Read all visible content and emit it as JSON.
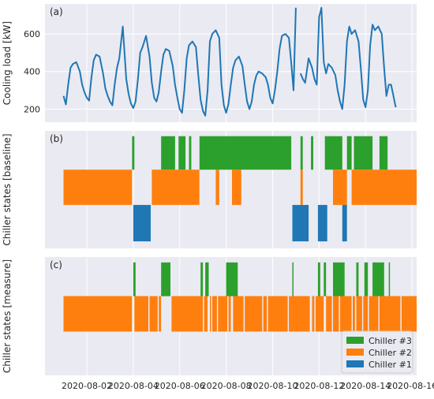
{
  "colors": {
    "panel_bg": "#eaeaf2",
    "grid": "#ffffff",
    "load_line": "#1f77b4",
    "chiller3": "#2ca02c",
    "chiller2": "#ff7f0e",
    "chiller1": "#1f77b4",
    "text": "#262626"
  },
  "chart_data": [
    {
      "panel": "(a)",
      "type": "line",
      "ylabel": "Cooling load [kW]",
      "yticks": [
        200,
        400,
        600
      ],
      "ylim": [
        130,
        760
      ],
      "x_days": [
        0.0,
        0.1,
        0.2,
        0.3,
        0.4,
        0.55,
        0.7,
        0.8,
        0.9,
        1.0,
        1.1,
        1.2,
        1.3,
        1.4,
        1.55,
        1.7,
        1.8,
        1.9,
        2.0,
        2.1,
        2.2,
        2.3,
        2.4,
        2.55,
        2.7,
        2.8,
        2.9,
        3.0,
        3.1,
        3.2,
        3.3,
        3.4,
        3.55,
        3.7,
        3.8,
        3.9,
        4.0,
        4.1,
        4.2,
        4.3,
        4.4,
        4.55,
        4.7,
        4.8,
        4.9,
        5.0,
        5.1,
        5.2,
        5.3,
        5.4,
        5.55,
        5.7,
        5.8,
        5.9,
        6.0,
        6.1,
        6.2,
        6.3,
        6.4,
        6.55,
        6.7,
        6.8,
        6.9,
        7.0,
        7.1,
        7.2,
        7.3,
        7.4,
        7.55,
        7.7,
        7.8,
        7.9,
        8.0,
        8.1,
        8.2,
        8.3,
        8.4,
        8.55,
        8.7,
        8.8,
        8.9,
        9.0,
        9.1,
        9.2,
        9.3,
        9.4,
        9.55,
        9.7,
        9.8,
        9.9,
        10.0,
        10.2,
        10.3,
        10.4,
        10.55,
        10.7,
        10.8,
        10.9,
        11.0,
        11.1,
        11.2,
        11.3,
        11.4,
        11.55,
        11.7,
        11.8,
        11.9,
        12.0,
        12.1,
        12.2,
        12.3,
        12.4,
        12.55,
        12.7,
        12.8,
        12.9,
        13.0,
        13.1,
        13.2,
        13.3,
        13.4,
        13.55,
        13.7,
        13.8,
        13.9,
        14.0,
        14.1,
        14.2,
        14.3
      ],
      "y_kw": [
        270,
        225,
        330,
        420,
        440,
        450,
        400,
        330,
        290,
        260,
        245,
        370,
        460,
        490,
        480,
        390,
        310,
        270,
        240,
        220,
        330,
        420,
        470,
        640,
        360,
        280,
        230,
        205,
        240,
        360,
        500,
        530,
        590,
        480,
        340,
        260,
        240,
        290,
        400,
        490,
        520,
        510,
        430,
        330,
        260,
        200,
        180,
        300,
        470,
        540,
        560,
        530,
        380,
        250,
        190,
        165,
        300,
        560,
        600,
        620,
        580,
        330,
        220,
        180,
        230,
        330,
        420,
        460,
        480,
        430,
        330,
        240,
        200,
        240,
        330,
        380,
        400,
        390,
        370,
        330,
        260,
        230,
        300,
        400,
        520,
        590,
        600,
        580,
        450,
        300,
        740,
        390,
        360,
        340,
        470,
        420,
        360,
        330,
        690,
        740,
        450,
        390,
        440,
        420,
        380,
        300,
        240,
        200,
        330,
        560,
        640,
        600,
        620,
        560,
        410,
        250,
        210,
        300,
        540,
        650,
        620,
        640,
        600,
        420,
        270,
        330,
        330,
        270,
        210
      ],
      "gaps_after_index": [
        90
      ]
    },
    {
      "panel": "(b)",
      "type": "timeline",
      "ylabel": "Chiller states [baseline]",
      "series": [
        {
          "name": "Chiller #3",
          "intervals": [
            [
              2.95,
              3.05
            ],
            [
              4.2,
              4.8
            ],
            [
              4.95,
              5.25
            ],
            [
              5.4,
              5.5
            ],
            [
              5.85,
              9.8
            ],
            [
              10.2,
              10.3
            ],
            [
              10.65,
              10.75
            ],
            [
              11.25,
              12.0
            ],
            [
              12.2,
              12.4
            ],
            [
              12.5,
              13.3
            ],
            [
              13.6,
              13.95
            ]
          ]
        },
        {
          "name": "Chiller #2",
          "intervals": [
            [
              0.0,
              2.95
            ],
            [
              3.8,
              5.85
            ],
            [
              6.55,
              6.7
            ],
            [
              7.25,
              7.65
            ],
            [
              10.2,
              10.3
            ],
            [
              11.6,
              12.2
            ],
            [
              12.4,
              15.2
            ]
          ]
        },
        {
          "name": "Chiller #1",
          "intervals": [
            [
              3.0,
              3.75
            ],
            [
              9.85,
              10.55
            ],
            [
              10.95,
              11.35
            ],
            [
              12.0,
              12.2
            ]
          ]
        }
      ]
    },
    {
      "panel": "(c)",
      "type": "timeline",
      "ylabel": "Chiller states [measure]",
      "series": [
        {
          "name": "Chiller #3",
          "intervals": [
            [
              3.0,
              3.1
            ],
            [
              4.2,
              4.6
            ],
            [
              5.9,
              6.0
            ],
            [
              6.1,
              6.25
            ],
            [
              7.0,
              7.5
            ],
            [
              9.85,
              9.9
            ],
            [
              10.95,
              11.05
            ],
            [
              11.2,
              11.3
            ],
            [
              11.6,
              12.1
            ],
            [
              12.6,
              12.7
            ],
            [
              12.95,
              13.1
            ],
            [
              13.3,
              13.8
            ],
            [
              14.0,
              14.05
            ]
          ]
        },
        {
          "name": "Chiller #2",
          "intervals": [
            [
              0.0,
              2.95
            ],
            [
              3.05,
              3.65
            ],
            [
              3.7,
              4.05
            ],
            [
              4.1,
              4.2
            ],
            [
              4.65,
              6.0
            ],
            [
              6.05,
              6.2
            ],
            [
              6.3,
              6.35
            ],
            [
              6.4,
              6.6
            ],
            [
              6.65,
              7.05
            ],
            [
              7.1,
              7.2
            ],
            [
              7.3,
              7.75
            ],
            [
              7.8,
              8.55
            ],
            [
              8.6,
              8.75
            ],
            [
              8.8,
              9.65
            ],
            [
              9.7,
              10.6
            ],
            [
              10.7,
              10.8
            ],
            [
              10.85,
              11.2
            ],
            [
              11.3,
              11.55
            ],
            [
              11.6,
              11.85
            ],
            [
              11.9,
              12.4
            ],
            [
              12.45,
              12.55
            ],
            [
              12.6,
              12.85
            ],
            [
              12.9,
              13.1
            ],
            [
              13.15,
              13.55
            ],
            [
              13.6,
              14.5
            ],
            [
              14.55,
              15.2
            ]
          ]
        },
        {
          "name": "Chiller #1",
          "intervals": []
        }
      ]
    }
  ],
  "x_axis": {
    "tick_labels": [
      "2020-08-02",
      "2020-08-04",
      "2020-08-06",
      "2020-08-08",
      "2020-08-10",
      "2020-08-12",
      "2020-08-14",
      "2020-08-16"
    ],
    "tick_days": [
      1,
      3,
      5,
      7,
      9,
      11,
      13,
      15
    ],
    "xlim_days": [
      -0.8,
      15.2
    ]
  },
  "legend": {
    "placement": "lower-right of panel (c)",
    "entries": [
      "Chiller #3",
      "Chiller #2",
      "Chiller #1"
    ]
  }
}
